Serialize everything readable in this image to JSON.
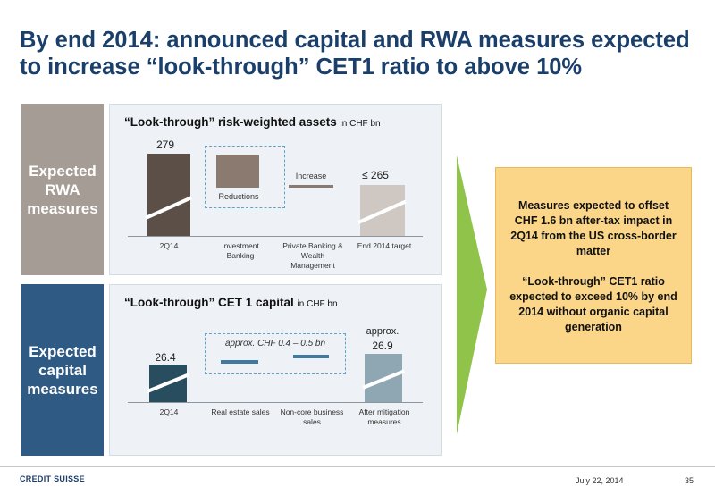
{
  "title": "By end 2014: announced capital and RWA measures expected to increase “look-through” CET1 ratio to above 10%",
  "rwa_section": {
    "side_label": "Expected RWA measures",
    "panel_title": "“Look-through” risk-weighted assets",
    "panel_unit": "in CHF bn",
    "value_2q14": "279",
    "value_target": "≤ 265",
    "reductions_label": "Reductions",
    "increase_label": "Increase",
    "x_labels": [
      "2Q14",
      "Investment Banking",
      "Private Banking & Wealth Management",
      "End 2014 target"
    ]
  },
  "capital_section": {
    "side_label": "Expected capital measures",
    "panel_title": "“Look-through” CET 1 capital",
    "panel_unit": "in CHF bn",
    "value_2q14": "26.4",
    "value_after_prefix": "approx.",
    "value_after": "26.9",
    "range_label": "approx. CHF 0.4  – 0.5 bn",
    "x_labels": [
      "2Q14",
      "Real estate sales",
      "Non-core business sales",
      "After mitigation measures"
    ]
  },
  "callout": {
    "para1": "Measures expected to offset CHF 1.6 bn after-tax impact in 2Q14 from the US cross-border matter",
    "para2": "“Look-through” CET1 ratio expected to exceed 10% by end 2014 without organic capital generation"
  },
  "footer": {
    "logo_text": "CREDIT SUISSE",
    "date": "July 22, 2014",
    "page": "35"
  },
  "colors": {
    "title": "#1b3f6b",
    "rwa_label_bg": "#a59d95",
    "capital_label_bg": "#2e5a83",
    "rwa_dark": "#5c4f47",
    "rwa_reduction": "#8b7a6f",
    "rwa_target": "#cfc8c2",
    "cap_dark": "#274d5e",
    "cap_measure": "#3f7ba0",
    "cap_after": "#8fa7b3",
    "arrow": "#8fc34a",
    "callout_bg": "#fbd688"
  }
}
